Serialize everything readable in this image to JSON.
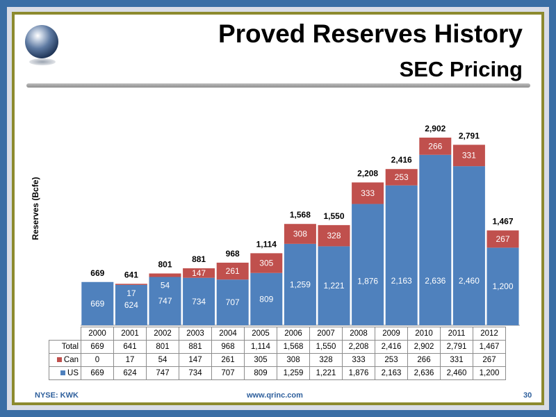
{
  "title": "Proved Reserves History",
  "subtitle": "SEC Pricing",
  "footer": {
    "left": "NYSE:  KWK",
    "center": "www.qrinc.com",
    "page": "30"
  },
  "chart_data": {
    "type": "bar",
    "stacked": true,
    "ylabel": "Reserves (Bcfe)",
    "categories": [
      "2000",
      "2001",
      "2002",
      "2003",
      "2004",
      "2005",
      "2006",
      "2007",
      "2008",
      "2009",
      "2010",
      "2011",
      "2012"
    ],
    "series": [
      {
        "name": "US",
        "color": "#4f81bd",
        "values": [
          669,
          624,
          747,
          734,
          707,
          809,
          1259,
          1221,
          1876,
          2163,
          2636,
          2460,
          1200
        ],
        "labels": [
          "669",
          "624",
          "747",
          "734",
          "707",
          "809",
          "1,259",
          "1,221",
          "1,876",
          "2,163",
          "2,636",
          "2,460",
          "1,200"
        ]
      },
      {
        "name": "Can",
        "color": "#c0504d",
        "values": [
          0,
          17,
          54,
          147,
          261,
          305,
          308,
          328,
          333,
          253,
          266,
          331,
          267
        ],
        "labels": [
          "0",
          "17",
          "54",
          "147",
          "261",
          "305",
          "308",
          "328",
          "333",
          "253",
          "266",
          "331",
          "267"
        ]
      }
    ],
    "totals": [
      669,
      641,
      801,
      881,
      968,
      1114,
      1568,
      1550,
      2208,
      2416,
      2902,
      2791,
      1467
    ],
    "total_labels": [
      "669",
      "641",
      "801",
      "881",
      "968",
      "1,114",
      "1,568",
      "1,550",
      "2,208",
      "2,416",
      "2,902",
      "2,791",
      "1,467"
    ],
    "table_row_labels": {
      "total": "Total",
      "can": "Can",
      "us": "US"
    },
    "ylim": [
      0,
      3000
    ],
    "grid": false,
    "legend": "data table below chart"
  }
}
